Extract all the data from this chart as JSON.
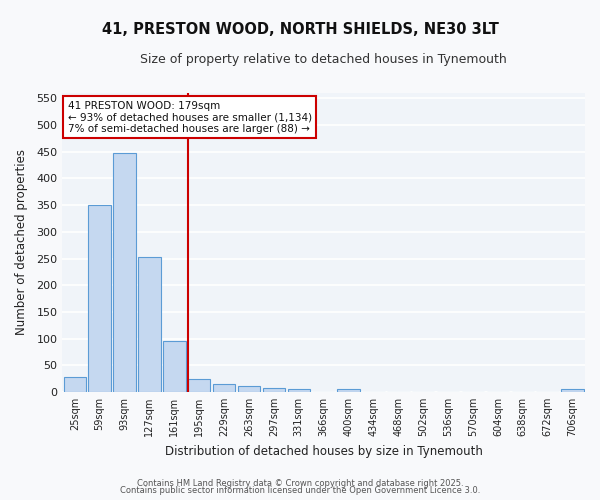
{
  "title": "41, PRESTON WOOD, NORTH SHIELDS, NE30 3LT",
  "subtitle": "Size of property relative to detached houses in Tynemouth",
  "xlabel": "Distribution of detached houses by size in Tynemouth",
  "ylabel": "Number of detached properties",
  "bar_labels": [
    "25sqm",
    "59sqm",
    "93sqm",
    "127sqm",
    "161sqm",
    "195sqm",
    "229sqm",
    "263sqm",
    "297sqm",
    "331sqm",
    "366sqm",
    "400sqm",
    "434sqm",
    "468sqm",
    "502sqm",
    "536sqm",
    "570sqm",
    "604sqm",
    "638sqm",
    "672sqm",
    "706sqm"
  ],
  "bar_values": [
    28,
    350,
    448,
    252,
    95,
    24,
    15,
    12,
    8,
    5,
    0,
    5,
    0,
    0,
    0,
    0,
    0,
    0,
    0,
    0,
    5
  ],
  "bar_color": "#c5d8f0",
  "bar_edge_color": "#5b9bd5",
  "fig_background_color": "#f8f9fb",
  "plot_background_color": "#f0f4f9",
  "grid_color": "#ffffff",
  "vline_x": 4.55,
  "vline_color": "#cc0000",
  "annotation_text": "41 PRESTON WOOD: 179sqm\n← 93% of detached houses are smaller (1,134)\n7% of semi-detached houses are larger (88) →",
  "annotation_box_color": "#cc0000",
  "ylim": [
    0,
    560
  ],
  "yticks": [
    0,
    50,
    100,
    150,
    200,
    250,
    300,
    350,
    400,
    450,
    500,
    550
  ],
  "footer_line1": "Contains HM Land Registry data © Crown copyright and database right 2025.",
  "footer_line2": "Contains public sector information licensed under the Open Government Licence 3.0."
}
